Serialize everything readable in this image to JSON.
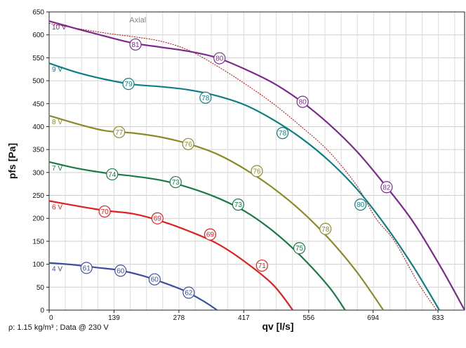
{
  "chart_data": {
    "type": "line",
    "title": "",
    "xlabel": "qv [l/s]",
    "ylabel": "pfs [Pa]",
    "footnote": "ρ: 1.15 kg/m³ ; Data @ 230 V",
    "xlim": [
      0,
      890
    ],
    "ylim": [
      0,
      650
    ],
    "x_ticks": [
      "0",
      "139",
      "278",
      "417",
      "556",
      "694",
      "833"
    ],
    "x_tick_values": [
      0,
      139,
      278,
      417,
      556,
      694,
      833
    ],
    "y_ticks": [
      "0",
      "50",
      "100",
      "150",
      "200",
      "250",
      "300",
      "350",
      "400",
      "450",
      "500",
      "550",
      "600",
      "650"
    ],
    "y_tick_values": [
      0,
      50,
      100,
      150,
      200,
      250,
      300,
      350,
      400,
      450,
      500,
      550,
      600,
      650
    ],
    "grid": true,
    "series": [
      {
        "name": "10 V",
        "color": "#7b2a8c",
        "x": [
          0,
          60,
          120,
          180,
          240,
          300,
          360,
          420,
          480,
          540,
          600,
          660,
          720,
          780,
          840,
          890
        ],
        "y": [
          630,
          613,
          597,
          582,
          573,
          564,
          550,
          525,
          495,
          455,
          405,
          345,
          272,
          192,
          92,
          0
        ],
        "labels": [
          {
            "x": 185,
            "y": 579,
            "text": "81"
          },
          {
            "x": 365,
            "y": 549,
            "text": "80"
          },
          {
            "x": 543,
            "y": 454,
            "text": "80"
          },
          {
            "x": 723,
            "y": 268,
            "text": "82"
          }
        ]
      },
      {
        "name": "9 V",
        "color": "#0d7f82",
        "x": [
          0,
          60,
          120,
          180,
          240,
          300,
          360,
          420,
          480,
          540,
          600,
          660,
          720,
          780,
          836
        ],
        "y": [
          538,
          518,
          503,
          492,
          487,
          480,
          467,
          447,
          415,
          375,
          325,
          263,
          185,
          95,
          0
        ],
        "labels": [
          {
            "x": 170,
            "y": 493,
            "text": "79"
          },
          {
            "x": 335,
            "y": 463,
            "text": "78"
          },
          {
            "x": 500,
            "y": 386,
            "text": "78"
          },
          {
            "x": 667,
            "y": 230,
            "text": "80"
          }
        ]
      },
      {
        "name": "8 V",
        "color": "#8b8a2a",
        "x": [
          0,
          60,
          120,
          180,
          240,
          300,
          360,
          420,
          480,
          540,
          600,
          660,
          716
        ],
        "y": [
          424,
          406,
          391,
          386,
          377,
          362,
          340,
          307,
          266,
          216,
          155,
          82,
          0
        ],
        "labels": [
          {
            "x": 150,
            "y": 388,
            "text": "77"
          },
          {
            "x": 298,
            "y": 362,
            "text": "76"
          },
          {
            "x": 445,
            "y": 303,
            "text": "76"
          },
          {
            "x": 592,
            "y": 177,
            "text": "78"
          }
        ]
      },
      {
        "name": "7 V",
        "color": "#1a7a45",
        "x": [
          0,
          60,
          120,
          180,
          240,
          300,
          360,
          420,
          480,
          540,
          600,
          634
        ],
        "y": [
          323,
          309,
          299,
          292,
          283,
          267,
          245,
          215,
          172,
          117,
          50,
          0
        ],
        "labels": [
          {
            "x": 135,
            "y": 296,
            "text": "74"
          },
          {
            "x": 271,
            "y": 279,
            "text": "73"
          },
          {
            "x": 405,
            "y": 230,
            "text": "73"
          },
          {
            "x": 536,
            "y": 135,
            "text": "75"
          }
        ]
      },
      {
        "name": "6 V",
        "color": "#e02020",
        "x": [
          0,
          60,
          120,
          180,
          240,
          300,
          360,
          420,
          480,
          522
        ],
        "y": [
          238,
          227,
          217,
          210,
          194,
          172,
          145,
          105,
          55,
          0
        ],
        "labels": [
          {
            "x": 119,
            "y": 215,
            "text": "70"
          },
          {
            "x": 232,
            "y": 200,
            "text": "69"
          },
          {
            "x": 345,
            "y": 165,
            "text": "69"
          },
          {
            "x": 456,
            "y": 97,
            "text": "71"
          }
        ]
      },
      {
        "name": "4 V",
        "color": "#3b4fa0",
        "x": [
          0,
          50,
          100,
          150,
          200,
          250,
          290,
          330,
          360
        ],
        "y": [
          103,
          99,
          93,
          87,
          75,
          58,
          42,
          20,
          0
        ],
        "labels": [
          {
            "x": 80,
            "y": 92,
            "text": "61"
          },
          {
            "x": 153,
            "y": 86,
            "text": "60"
          },
          {
            "x": 226,
            "y": 67,
            "text": "60"
          },
          {
            "x": 299,
            "y": 38,
            "text": "62"
          }
        ]
      }
    ],
    "annotation_curve": {
      "name": "Axial",
      "color": "#c00000",
      "style": "dotted",
      "label_position": {
        "x": 172,
        "y": 627
      },
      "x": [
        0,
        60,
        120,
        180,
        240,
        300,
        360,
        420,
        480,
        540,
        600,
        660,
        700,
        740,
        790,
        830
      ],
      "y": [
        625,
        614,
        604,
        596,
        586,
        566,
        532,
        493,
        450,
        400,
        345,
        270,
        200,
        150,
        60,
        0
      ]
    }
  }
}
